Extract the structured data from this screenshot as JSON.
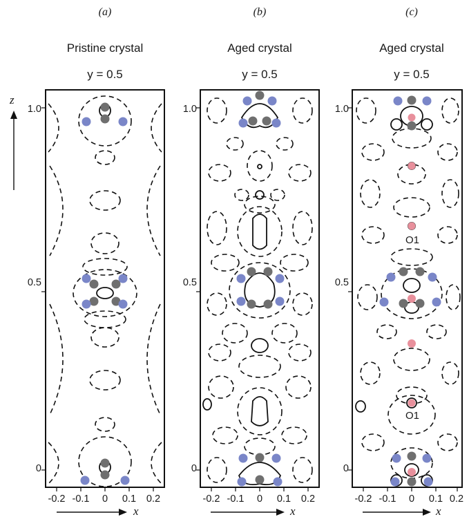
{
  "figure": {
    "panels": [
      {
        "tag": "(a)",
        "title": "Pristine crystal",
        "slice": "y = 0.5",
        "xticks": [
          "-0.2",
          "-0.1",
          "0",
          "0.1",
          "0.2"
        ],
        "yticks": [
          "1.0",
          "0.5",
          "0"
        ],
        "annotations": []
      },
      {
        "tag": "(b)",
        "title": "Aged crystal",
        "slice": "y = 0.5",
        "xticks": [
          "-0.2",
          "-0.1",
          "0",
          "0.1",
          "0.2"
        ],
        "yticks": [
          "1.0",
          "0.5",
          "0"
        ],
        "annotations": []
      },
      {
        "tag": "(c)",
        "title": "Aged crystal",
        "slice": "y = 0.5",
        "xticks": [
          "-0.2",
          "-0.1",
          "0",
          "0.1",
          "0.2"
        ],
        "yticks": [
          "1.0",
          "0.5",
          "0"
        ],
        "annotations": [
          "O1",
          "O1"
        ]
      }
    ],
    "axis_x": "x",
    "axis_z": "z",
    "atom_colors": {
      "grey": "#6f6f6f",
      "blue": "#7a86c8",
      "pink": "#e8909c"
    }
  }
}
